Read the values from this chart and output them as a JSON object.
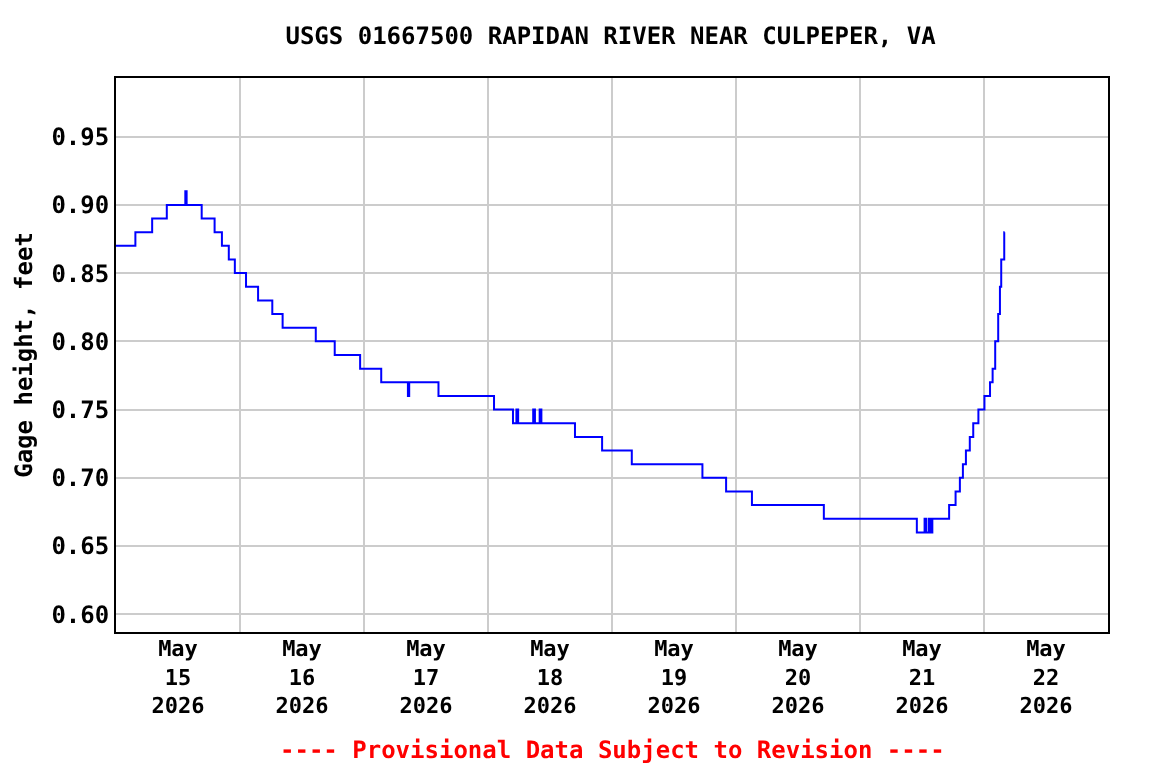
{
  "chart_data": {
    "type": "step",
    "title": "USGS 01667500 RAPIDAN RIVER NEAR CULPEPER, VA",
    "ylabel": "Gage height, feet",
    "annotations": [
      "---- Provisional Data Subject to Revision ----"
    ],
    "x": [
      "2026-05-15T00:00",
      "2026-05-15T03:45",
      "2026-05-15T07:00",
      "2026-05-15T09:50",
      "2026-05-15T13:25",
      "2026-05-15T13:40",
      "2026-05-15T16:35",
      "2026-05-15T19:05",
      "2026-05-15T20:30",
      "2026-05-15T21:50",
      "2026-05-15T23:00",
      "2026-05-16T01:10",
      "2026-05-16T03:30",
      "2026-05-16T06:15",
      "2026-05-16T08:15",
      "2026-05-16T14:40",
      "2026-05-16T18:20",
      "2026-05-16T23:15",
      "2026-05-17T03:20",
      "2026-05-17T08:30",
      "2026-05-17T08:45",
      "2026-05-17T14:25",
      "2026-05-18T01:10",
      "2026-05-18T04:50",
      "2026-05-18T05:30",
      "2026-05-18T05:50",
      "2026-05-18T08:45",
      "2026-05-18T09:05",
      "2026-05-18T10:00",
      "2026-05-18T10:20",
      "2026-05-18T16:50",
      "2026-05-18T22:05",
      "2026-05-19T03:50",
      "2026-05-19T17:30",
      "2026-05-19T22:05",
      "2026-05-20T03:05",
      "2026-05-20T17:00",
      "2026-05-21T11:00",
      "2026-05-21T12:30",
      "2026-05-21T12:50",
      "2026-05-21T13:20",
      "2026-05-21T13:40",
      "2026-05-21T14:00",
      "2026-05-21T17:15",
      "2026-05-21T18:30",
      "2026-05-21T19:20",
      "2026-05-21T19:55",
      "2026-05-21T20:30",
      "2026-05-21T21:15",
      "2026-05-21T21:55",
      "2026-05-21T22:55",
      "2026-05-22T00:05",
      "2026-05-22T01:10",
      "2026-05-22T01:40",
      "2026-05-22T02:10",
      "2026-05-22T02:45",
      "2026-05-22T03:05",
      "2026-05-22T03:20",
      "2026-05-22T03:55",
      "2026-05-22T04:00"
    ],
    "series": [
      {
        "color": "#0000ff",
        "values": [
          0.87,
          0.88,
          0.89,
          0.9,
          0.91,
          0.9,
          0.89,
          0.88,
          0.87,
          0.86,
          0.85,
          0.84,
          0.83,
          0.82,
          0.81,
          0.8,
          0.79,
          0.78,
          0.77,
          0.76,
          0.77,
          0.76,
          0.75,
          0.74,
          0.75,
          0.74,
          0.75,
          0.74,
          0.75,
          0.74,
          0.73,
          0.72,
          0.71,
          0.7,
          0.69,
          0.68,
          0.67,
          0.66,
          0.67,
          0.66,
          0.67,
          0.66,
          0.67,
          0.68,
          0.69,
          0.7,
          0.71,
          0.72,
          0.73,
          0.74,
          0.75,
          0.76,
          0.77,
          0.78,
          0.8,
          0.82,
          0.84,
          0.86,
          0.88,
          0.88
        ]
      }
    ],
    "xlim": [
      "2026-05-15T00:00",
      "2026-05-23T00:00"
    ],
    "xticks": [
      {
        "value": "2026-05-15T12:00",
        "label": "May 15 2026"
      },
      {
        "value": "2026-05-16T00:00",
        "label": null
      },
      {
        "value": "2026-05-16T12:00",
        "label": "May 16 2026"
      },
      {
        "value": "2026-05-17T00:00",
        "label": null
      },
      {
        "value": "2026-05-17T12:00",
        "label": "May 17 2026"
      },
      {
        "value": "2026-05-18T00:00",
        "label": null
      },
      {
        "value": "2026-05-18T12:00",
        "label": "May 18 2026"
      },
      {
        "value": "2026-05-19T00:00",
        "label": null
      },
      {
        "value": "2026-05-19T12:00",
        "label": "May 19 2026"
      },
      {
        "value": "2026-05-20T00:00",
        "label": null
      },
      {
        "value": "2026-05-20T12:00",
        "label": "May 20 2026"
      },
      {
        "value": "2026-05-21T00:00",
        "label": null
      },
      {
        "value": "2026-05-21T12:00",
        "label": "May 21 2026"
      },
      {
        "value": "2026-05-22T00:00",
        "label": null
      },
      {
        "value": "2026-05-22T12:00",
        "label": "May 22 2026"
      }
    ],
    "ylim": [
      0.587,
      0.993
    ],
    "yticks": [
      {
        "value": 0.6,
        "label": "0.60"
      },
      {
        "value": 0.65,
        "label": "0.65"
      },
      {
        "value": 0.7,
        "label": "0.70"
      },
      {
        "value": 0.75,
        "label": "0.75"
      },
      {
        "value": 0.8,
        "label": "0.80"
      },
      {
        "value": 0.85,
        "label": "0.85"
      },
      {
        "value": 0.9,
        "label": "0.90"
      },
      {
        "value": 0.95,
        "label": "0.95"
      }
    ],
    "grid": true
  }
}
